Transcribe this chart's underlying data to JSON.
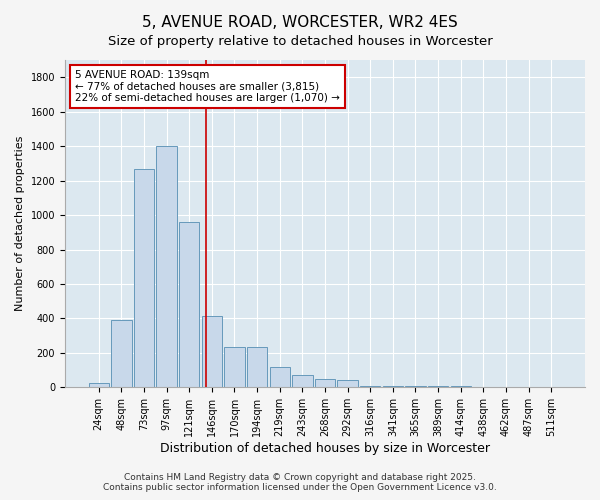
{
  "title": "5, AVENUE ROAD, WORCESTER, WR2 4ES",
  "subtitle": "Size of property relative to detached houses in Worcester",
  "xlabel": "Distribution of detached houses by size in Worcester",
  "ylabel": "Number of detached properties",
  "categories": [
    "24sqm",
    "48sqm",
    "73sqm",
    "97sqm",
    "121sqm",
    "146sqm",
    "170sqm",
    "194sqm",
    "219sqm",
    "243sqm",
    "268sqm",
    "292sqm",
    "316sqm",
    "341sqm",
    "365sqm",
    "389sqm",
    "414sqm",
    "438sqm",
    "462sqm",
    "487sqm",
    "511sqm"
  ],
  "values": [
    25,
    390,
    1265,
    1400,
    960,
    415,
    235,
    235,
    120,
    70,
    50,
    40,
    10,
    10,
    8,
    5,
    5,
    3,
    3,
    3,
    3
  ],
  "bar_color": "#c8d8ea",
  "bar_edge_color": "#6699bb",
  "ylim": [
    0,
    1900
  ],
  "yticks": [
    0,
    200,
    400,
    600,
    800,
    1000,
    1200,
    1400,
    1600,
    1800
  ],
  "red_line_x": 4.72,
  "annotation_text": "5 AVENUE ROAD: 139sqm\n← 77% of detached houses are smaller (3,815)\n22% of semi-detached houses are larger (1,070) →",
  "annotation_box_color": "#ffffff",
  "annotation_box_edge": "#cc0000",
  "fig_bg_color": "#f5f5f5",
  "plot_bg_color": "#dce8f0",
  "footer_line1": "Contains HM Land Registry data © Crown copyright and database right 2025.",
  "footer_line2": "Contains public sector information licensed under the Open Government Licence v3.0.",
  "title_fontsize": 11,
  "subtitle_fontsize": 9.5,
  "xlabel_fontsize": 9,
  "ylabel_fontsize": 8,
  "tick_fontsize": 7,
  "annotation_fontsize": 7.5,
  "footer_fontsize": 6.5
}
